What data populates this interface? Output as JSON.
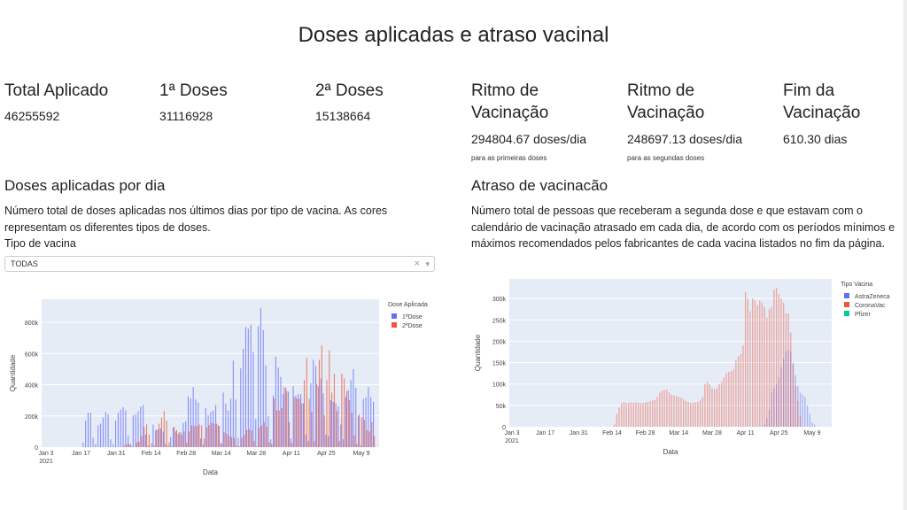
{
  "title": "Doses aplicadas e atraso vacinal",
  "stats": [
    {
      "label": "Total Aplicado",
      "value": "46255592"
    },
    {
      "label": "1ª Doses",
      "value": "31116928"
    },
    {
      "label": "2ª Doses",
      "value": "15138664"
    },
    {
      "label": "Ritmo de Vacinação",
      "value": "294804.67 doses/dia",
      "note": "para as primeiras doses"
    },
    {
      "label": "Ritmo de Vacinação",
      "value": "248697.13 doses/dia",
      "note": "para as segundas doses"
    },
    {
      "label": "Fim da Vacinação",
      "value": "610.30 dias"
    }
  ],
  "left": {
    "title": "Doses aplicadas por dia",
    "description": "Número total de doses aplicadas nos últimos dias por tipo de vacina. As cores representam os diferentes tipos de doses.",
    "filter_label": "Tipo de vacina",
    "filter_value": "TODAS",
    "clear_icon": "×",
    "caret_icon": "▾"
  },
  "right": {
    "title": "Atraso de vacinacão",
    "description": "Número total de pessoas que receberam a segunda dose e que estavam com o calendário de vacinação atrasado em cada dia, de acordo com os períodos mínimos e máximos recomendados pelos fabricantes de cada vacina listados no fim da página."
  },
  "chart_data": [
    {
      "type": "bar",
      "barmode": "group",
      "xlabel": "Data",
      "ylabel": "Quantidade",
      "legend_title": "Dose Aplicada",
      "legend_position": "top-right",
      "grid": true,
      "x_ticks": [
        "Jan 3",
        "Jan 17",
        "Jan 31",
        "Feb 14",
        "Feb 28",
        "Mar 14",
        "Mar 28",
        "Apr 11",
        "Apr 25",
        "May 9"
      ],
      "x_tick_year": "2021",
      "y_ticks": [
        "0",
        "200k",
        "400k",
        "600k",
        "800k"
      ],
      "ylim": [
        0,
        948000
      ],
      "x_start": "2021-01-18",
      "unit": "thousands",
      "series": [
        {
          "name": "1ªDose",
          "color": "#636efa",
          "values": [
            30,
            170,
            220,
            220,
            60,
            20,
            140,
            150,
            190,
            225,
            210,
            50,
            20,
            170,
            220,
            240,
            255,
            235,
            75,
            20,
            205,
            210,
            230,
            260,
            270,
            80,
            10,
            0,
            145,
            110,
            115,
            120,
            100,
            20,
            5,
            65,
            125,
            100,
            85,
            95,
            155,
            165,
            325,
            310,
            385,
            305,
            285,
            55,
            15,
            250,
            205,
            225,
            235,
            270,
            140,
            25,
            350,
            280,
            235,
            310,
            555,
            305,
            60,
            505,
            630,
            770,
            760,
            785,
            610,
            180,
            775,
            890,
            750,
            525,
            200,
            50,
            330,
            580,
            510,
            450,
            340,
            380,
            355,
            55,
            390,
            330,
            340,
            340,
            280,
            80,
            40,
            410,
            560,
            520,
            390,
            440,
            345,
            80,
            70,
            300,
            290,
            280,
            260,
            145,
            50,
            320,
            365,
            430,
            500,
            380,
            200,
            10,
            310,
            320,
            385,
            320,
            290
          ]
        },
        {
          "name": "2ªDose",
          "color": "#EF553B",
          "values": [
            0,
            0,
            0,
            0,
            0,
            0,
            0,
            0,
            0,
            0,
            0,
            0,
            0,
            0,
            0,
            0,
            10,
            20,
            20,
            5,
            0,
            30,
            35,
            70,
            130,
            145,
            80,
            25,
            10,
            110,
            150,
            190,
            230,
            170,
            30,
            5,
            130,
            110,
            95,
            80,
            100,
            30,
            100,
            140,
            135,
            135,
            145,
            140,
            55,
            125,
            140,
            155,
            150,
            150,
            135,
            25,
            95,
            85,
            70,
            65,
            60,
            10,
            5,
            60,
            80,
            110,
            115,
            105,
            40,
            5,
            125,
            140,
            160,
            130,
            30,
            20,
            310,
            235,
            235,
            250,
            385,
            360,
            160,
            25,
            320,
            310,
            310,
            280,
            430,
            570,
            310,
            225,
            40,
            405,
            560,
            650,
            205,
            430,
            620,
            350,
            470,
            230,
            40,
            470,
            440,
            360,
            300,
            220,
            75,
            20,
            210,
            190,
            175,
            110,
            100,
            160,
            70
          ]
        }
      ]
    },
    {
      "type": "bar",
      "barmode": "overlay",
      "xlabel": "Data",
      "ylabel": "Quantidade",
      "legend_title": "Tipo Vacina",
      "legend_position": "top-right",
      "grid": true,
      "x_ticks": [
        "Jan 3",
        "Jan 17",
        "Jan 31",
        "Feb 14",
        "Feb 28",
        "Mar 14",
        "Mar 28",
        "Apr 11",
        "Apr 25",
        "May 9"
      ],
      "x_tick_year": "2021",
      "y_ticks": [
        "0",
        "50k",
        "100k",
        "150k",
        "200k",
        "250k",
        "300k"
      ],
      "ylim": [
        0,
        345000
      ],
      "unit": "thousands",
      "series": [
        {
          "name": "AstraZeneca",
          "color": "#636efa",
          "x_start": "2021-04-19",
          "values": [
            5,
            20,
            40,
            80,
            90,
            100,
            115,
            140,
            160,
            175,
            180,
            175,
            150,
            120,
            95,
            80,
            75,
            70,
            50,
            30,
            10,
            5
          ]
        },
        {
          "name": "CoronaVac",
          "color": "#EF553B",
          "x_start": "2021-02-15",
          "values": [
            5,
            30,
            45,
            55,
            58,
            55,
            56,
            57,
            56,
            57,
            56,
            55,
            56,
            57,
            58,
            60,
            62,
            63,
            70,
            80,
            85,
            86,
            87,
            80,
            75,
            73,
            72,
            70,
            68,
            65,
            60,
            58,
            56,
            56,
            57,
            58,
            62,
            70,
            100,
            105,
            100,
            90,
            88,
            90,
            100,
            105,
            115,
            125,
            128,
            130,
            135,
            155,
            165,
            170,
            190,
            315,
            300,
            270,
            300,
            295,
            285,
            295,
            290,
            280,
            255,
            275,
            280,
            320,
            325,
            310,
            300,
            290,
            265,
            265,
            220,
            145,
            95,
            60,
            25
          ]
        },
        {
          "name": "Pfizer",
          "color": "#00cc96",
          "values": []
        }
      ]
    }
  ]
}
